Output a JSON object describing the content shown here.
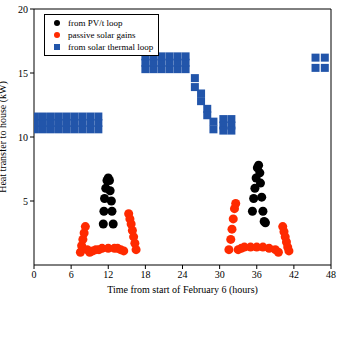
{
  "chart_data": {
    "type": "scatter",
    "x_label": "Time from start of February 6 (hours)",
    "y_label": "Heat transfer to house (kW)",
    "xlim": [
      0,
      48
    ],
    "xticks": [
      0,
      6,
      12,
      18,
      24,
      30,
      36,
      42,
      48
    ],
    "ylim": [
      0,
      20
    ],
    "yticks": [
      5,
      10,
      15,
      20
    ],
    "legend": "upper left",
    "series": [
      {
        "name": "from PV/t loop",
        "color": "#000000",
        "marker": "circle",
        "x": [
          11.2,
          11.3,
          11.4,
          11.6,
          11.8,
          12.0,
          12.2,
          12.3,
          12.5,
          12.6,
          12.8,
          35.3,
          35.5,
          35.7,
          35.9,
          36.1,
          36.3,
          36.5,
          36.6,
          36.8,
          37.0,
          37.2,
          37.4
        ],
        "values": [
          3.2,
          4.2,
          5.2,
          6.0,
          6.6,
          6.8,
          6.6,
          5.8,
          5.0,
          4.2,
          3.2,
          4.2,
          5.2,
          6.0,
          6.8,
          7.6,
          7.8,
          7.2,
          6.4,
          5.3,
          4.2,
          3.4,
          3.3
        ]
      },
      {
        "name": "passive solar gains",
        "color": "#ff2a00",
        "marker": "circle",
        "x": [
          7.5,
          7.7,
          7.9,
          8.1,
          8.3,
          8.6,
          9,
          9.5,
          10,
          10.5,
          11,
          12,
          13,
          13.5,
          14,
          14.5,
          15.3,
          15.5,
          15.7,
          15.9,
          16.1,
          16.3,
          16.5,
          31.5,
          31.8,
          32.0,
          32.2,
          32.4,
          32.6,
          33,
          33.5,
          34,
          35,
          36,
          37,
          38,
          39,
          39.5,
          40.2,
          40.4,
          40.6,
          40.8,
          41,
          41.2
        ],
        "values": [
          1.0,
          1.5,
          2.0,
          2.5,
          3.0,
          1.2,
          1.0,
          1.1,
          1.2,
          1.2,
          1.3,
          1.3,
          1.3,
          1.3,
          1.2,
          1.1,
          4.0,
          3.6,
          3.2,
          2.7,
          2.2,
          1.7,
          1.2,
          1.2,
          2.0,
          2.8,
          3.6,
          4.4,
          4.8,
          1.2,
          1.3,
          1.4,
          1.4,
          1.4,
          1.4,
          1.3,
          1.2,
          1.0,
          3.0,
          2.6,
          2.2,
          1.8,
          1.4,
          1.1
        ]
      },
      {
        "name": "from solar thermal loop",
        "color": "#2255aa",
        "marker": "square",
        "x": [
          0,
          0,
          0,
          1.3,
          1.3,
          1.3,
          2.6,
          2.6,
          2.6,
          3.9,
          3.9,
          3.9,
          5.2,
          5.2,
          5.2,
          6.5,
          6.5,
          6.5,
          7.8,
          7.8,
          7.8,
          9.1,
          9.1,
          9.1,
          10.4,
          10.4,
          10.4,
          18,
          18,
          18,
          19.3,
          19.3,
          19.3,
          20.6,
          20.6,
          20.6,
          21.9,
          21.9,
          21.9,
          23.2,
          23.2,
          23.2,
          24.5,
          24.5,
          24.5,
          26,
          26,
          27,
          27,
          28,
          28,
          29,
          29,
          30.6,
          30.6,
          30.6,
          31.9,
          31.9,
          31.9,
          45.5,
          45.5,
          47,
          47
        ],
        "values": [
          10.6,
          11.1,
          11.6,
          10.6,
          11.1,
          11.6,
          10.6,
          11.1,
          11.6,
          10.6,
          11.1,
          11.6,
          10.6,
          11.1,
          11.6,
          10.6,
          11.1,
          11.6,
          10.6,
          11.1,
          11.6,
          10.6,
          11.1,
          11.6,
          10.6,
          11.1,
          11.6,
          15.3,
          15.8,
          16.3,
          15.3,
          15.8,
          16.3,
          15.3,
          15.8,
          16.3,
          15.3,
          15.8,
          16.3,
          15.3,
          15.8,
          16.3,
          15.3,
          15.8,
          16.3,
          14.6,
          13.9,
          13.4,
          12.8,
          12.2,
          11.7,
          11.2,
          10.6,
          11.4,
          10.9,
          10.5,
          11.4,
          10.9,
          10.5,
          16.2,
          15.4,
          16.2,
          15.4
        ]
      }
    ]
  }
}
